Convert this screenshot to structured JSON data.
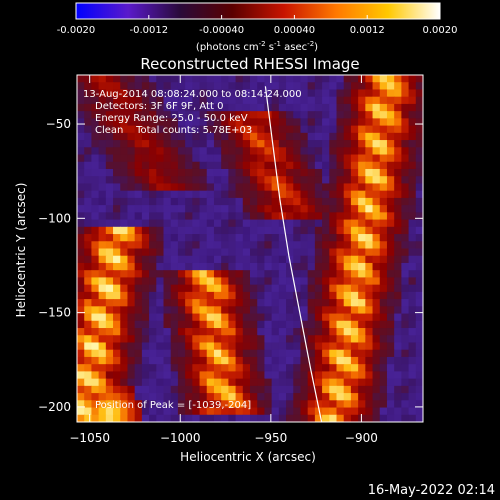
{
  "colorbar": {
    "ticks": [
      "-0.0020",
      "-0.0012",
      "-0.00040",
      "0.00040",
      "0.0012",
      "0.0020"
    ],
    "tick_values": [
      -0.002,
      -0.0012,
      -0.0004,
      0.0004,
      0.0012,
      0.002
    ],
    "range": [
      -0.002,
      0.002
    ],
    "units_base": "(photons cm",
    "units_exp1": "-2",
    "units_mid": " s",
    "units_exp2": "-1",
    "units_end": " asec",
    "units_exp3": "-2",
    "units_close": ")",
    "colors": [
      "#0000ff",
      "#5a1acb",
      "#2a0a3a",
      "#5a0000",
      "#c81400",
      "#ff7800",
      "#ffc800",
      "#ffffff"
    ]
  },
  "chart_data": {
    "type": "heatmap",
    "title": "Reconstructed RHESSI Image",
    "xlabel": "Heliocentric X (arcsec)",
    "ylabel": "Heliocentric Y (arcsec)",
    "xlim": [
      -1057,
      -866
    ],
    "ylim": [
      -208,
      -24
    ],
    "xticks": [
      -1050,
      -1000,
      -950,
      -900
    ],
    "yticks": [
      -200,
      -150,
      -100,
      -50
    ],
    "annotations": [
      "13-Aug-2014 08:08:24.000 to 08:14:24.000",
      "Detectors: 3F 6F 9F, Att 0",
      "Energy Range: 25.0 - 50.0 keV",
      "Clean    Total counts: 5.78E+03"
    ],
    "peak_label": "Position of Peak = [-1039,-204]",
    "peak": [
      -1039,
      -204
    ],
    "limb_curve": {
      "x": [
        -953,
        -949,
        -945,
        -940,
        -934,
        -928,
        -922
      ],
      "y": [
        -30,
        -60,
        -90,
        -120,
        -150,
        -180,
        -208
      ]
    },
    "emission_bands": [
      {
        "x_top": -1035,
        "x_bottom": -1055,
        "y_range": [
          -110,
          -208
        ],
        "strength": 0.95
      },
      {
        "x_top": -985,
        "x_bottom": -975,
        "y_range": [
          -135,
          -200
        ],
        "strength": 0.85
      },
      {
        "x_top": -960,
        "x_bottom": -940,
        "y_range": [
          -50,
          -95
        ],
        "strength": 0.55
      },
      {
        "x_top": -885,
        "x_bottom": -915,
        "y_range": [
          -24,
          -208
        ],
        "strength": 0.9
      },
      {
        "x_top": -1040,
        "x_bottom": -1010,
        "y_range": [
          -30,
          -80
        ],
        "strength": 0.35
      }
    ]
  },
  "footer": {
    "timestamp": "16-May-2022 02:14"
  }
}
